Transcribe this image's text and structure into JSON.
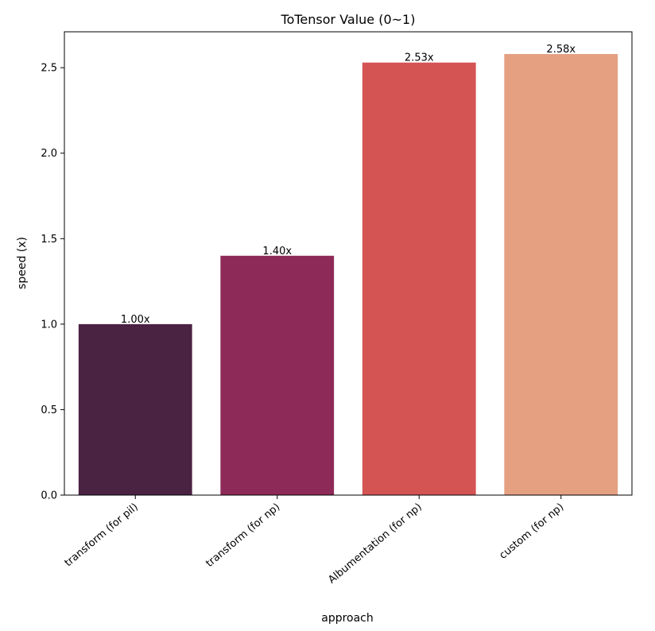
{
  "chart_data": {
    "type": "bar",
    "title": "ToTensor Value (0~1)",
    "xlabel": "approach",
    "ylabel": "speed (x)",
    "categories": [
      "transform (for pil)",
      "transform (for np)",
      "Albumentation (for np)",
      "custom (for np)"
    ],
    "values": [
      1.0,
      1.4,
      2.53,
      2.58
    ],
    "bar_labels": [
      "1.00x",
      "1.40x",
      "2.53x",
      "2.58x"
    ],
    "colors": [
      "#4a2242",
      "#8e2a58",
      "#d45454",
      "#e5a082"
    ],
    "ylim": [
      0,
      2.71
    ],
    "yticks": [
      0.0,
      0.5,
      1.0,
      1.5,
      2.0,
      2.5
    ],
    "ytick_labels": [
      "0.0",
      "0.5",
      "1.0",
      "1.5",
      "2.0",
      "2.5"
    ],
    "grid": false,
    "legend": "none"
  }
}
